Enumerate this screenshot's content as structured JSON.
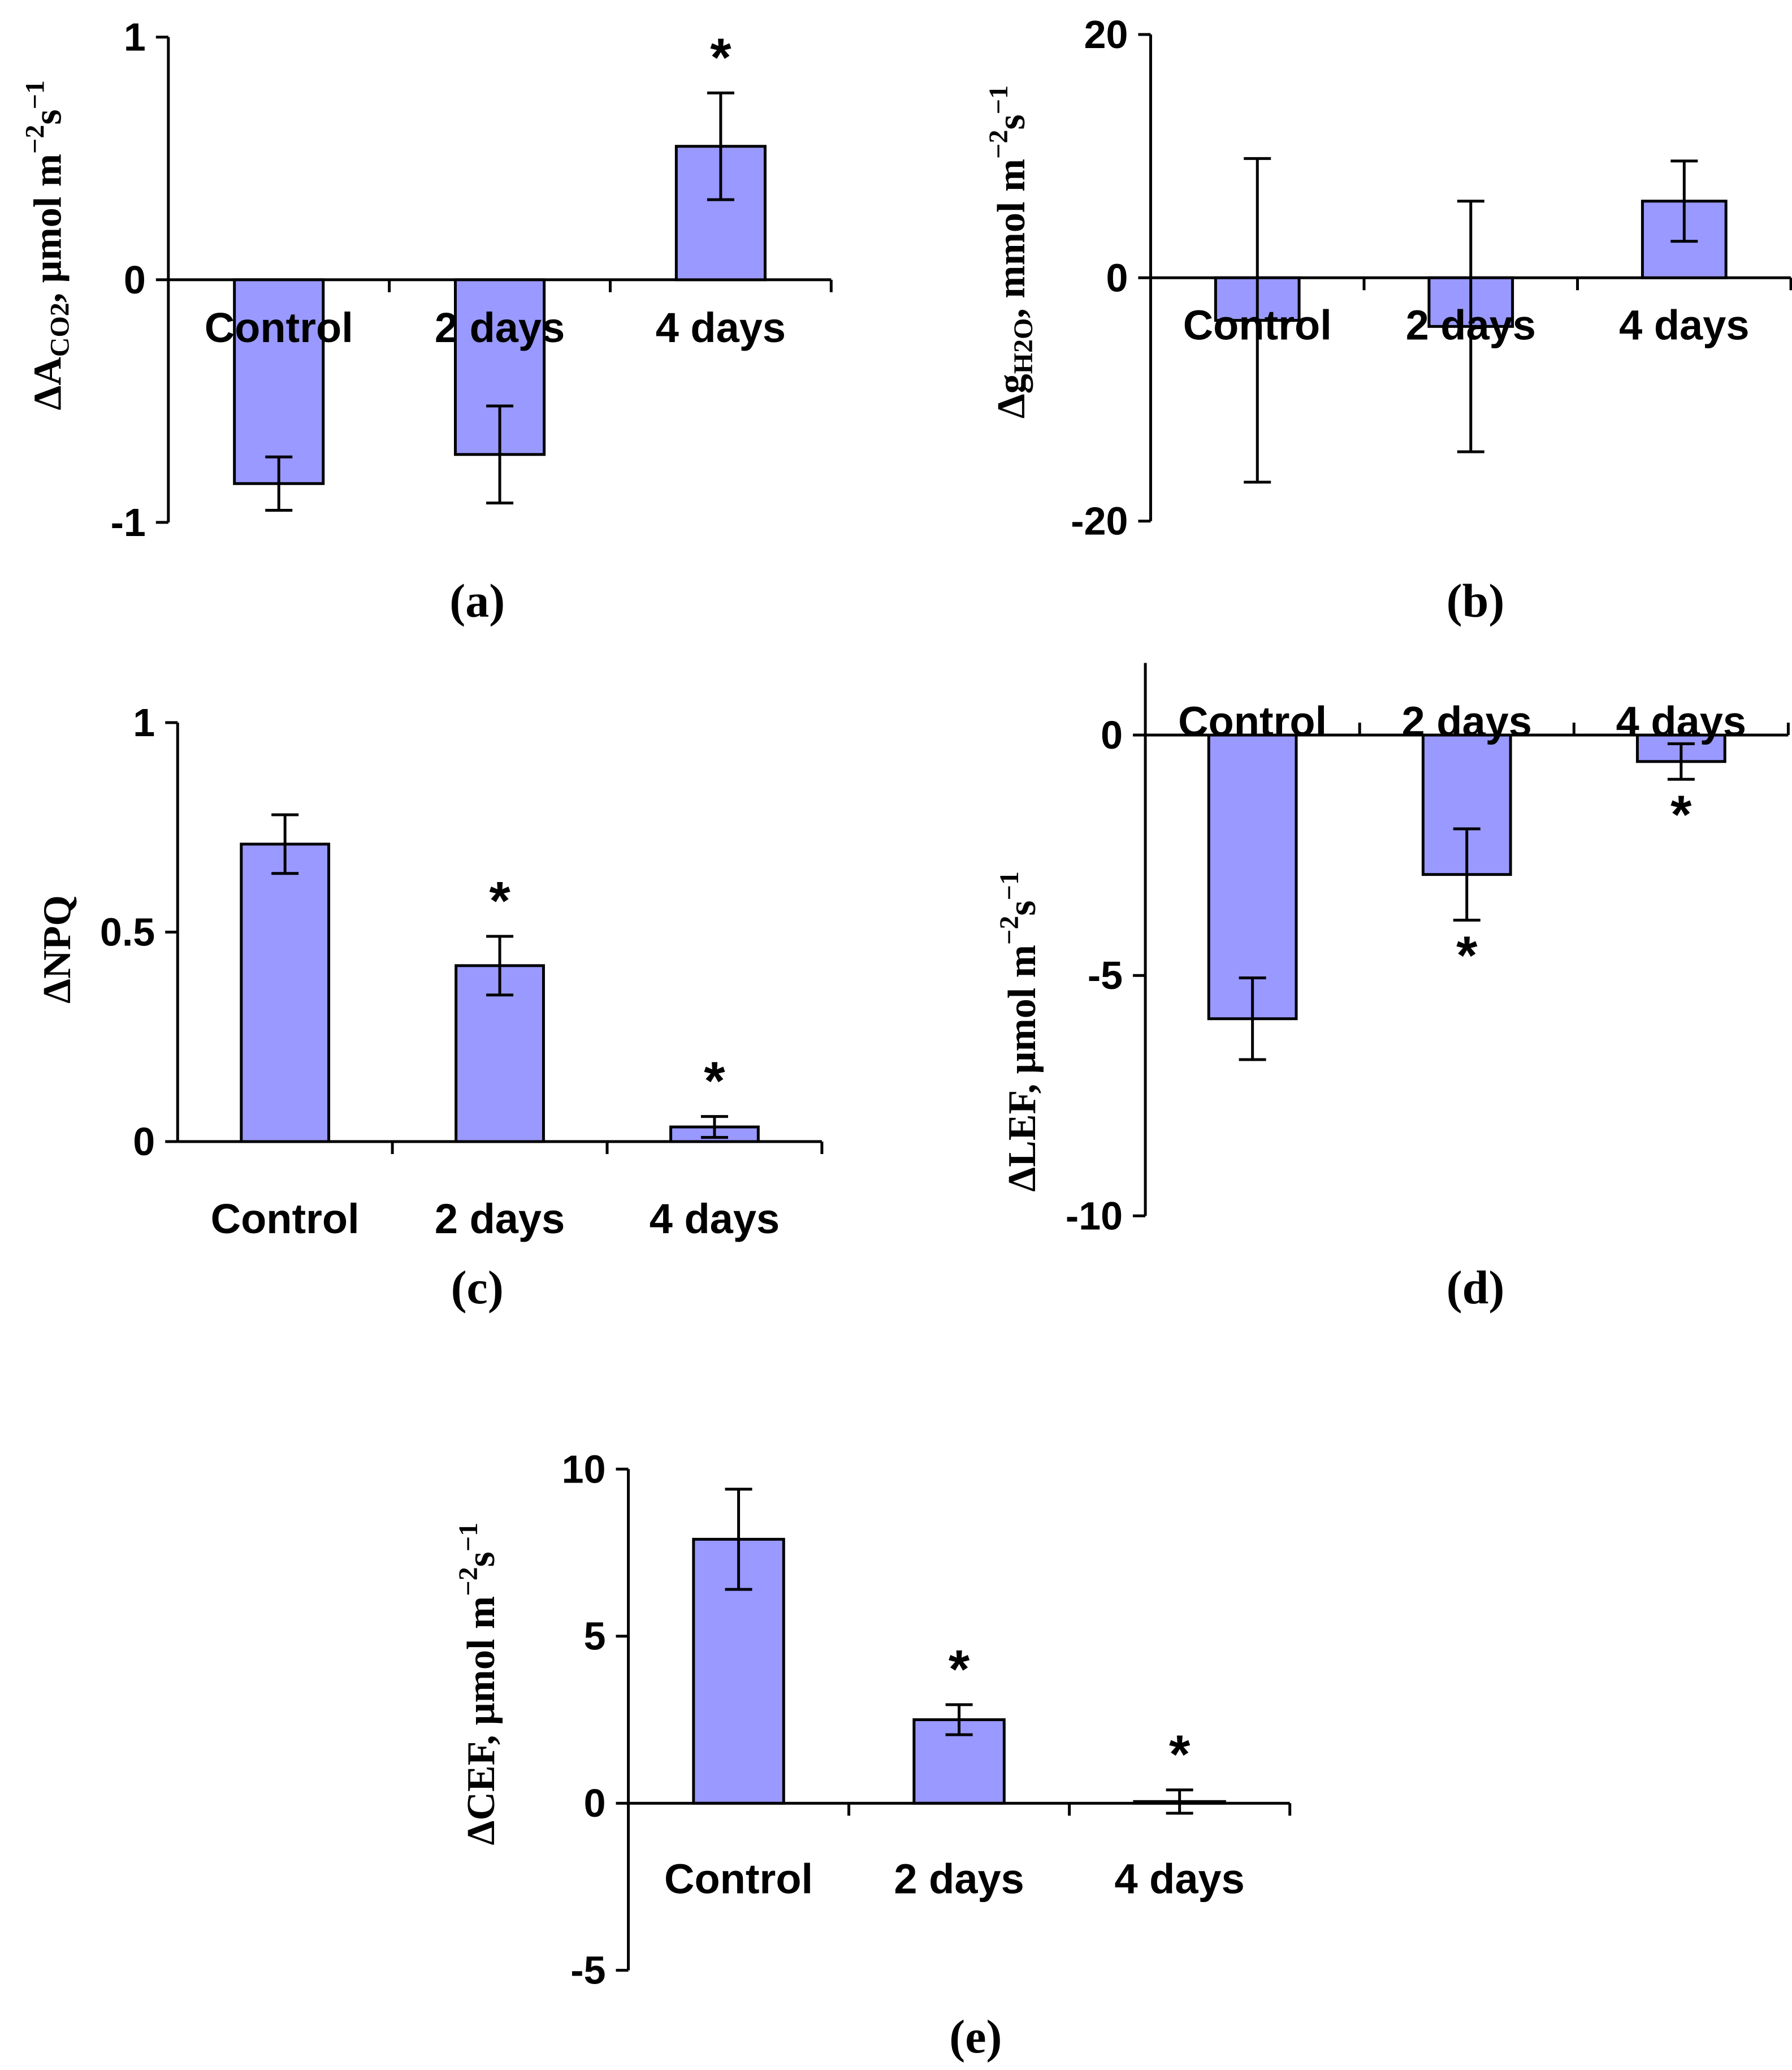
{
  "colors": {
    "bar_fill": "#9999ff",
    "bar_stroke": "#000000",
    "axis": "#000000"
  },
  "chart_data": [
    {
      "id": "a",
      "type": "bar",
      "panel_label": "(a)",
      "ylabel_main": "ΔA",
      "ylabel_sub": "CO2",
      "ylabel_unit": ", μmol m",
      "ylabel_exp1": "−2",
      "ylabel_mid": "s",
      "ylabel_exp2": "−1",
      "categories": [
        "Control",
        "2 days",
        "4 days"
      ],
      "values": [
        -0.84,
        -0.72,
        0.55
      ],
      "error": [
        0.11,
        0.2,
        0.22
      ],
      "significant": [
        false,
        false,
        true
      ],
      "ylim": [
        -1,
        1
      ],
      "ticks": [
        -1,
        0,
        1
      ],
      "tick_labels": [
        "-1",
        "0",
        "1"
      ],
      "category_labels_position": "below-zero-line"
    },
    {
      "id": "b",
      "type": "bar",
      "panel_label": "(b)",
      "ylabel_main": "Δg",
      "ylabel_sub": "H2O",
      "ylabel_unit": ", mmol m",
      "ylabel_exp1": "−2",
      "ylabel_mid": "s",
      "ylabel_exp2": "−1",
      "categories": [
        "Control",
        "2 days",
        "4 days"
      ],
      "values": [
        -3.5,
        -4,
        6.3
      ],
      "error": [
        13.3,
        10.3,
        3.3
      ],
      "significant": [
        false,
        false,
        false
      ],
      "ylim": [
        -20,
        20
      ],
      "ticks": [
        -20,
        0,
        20
      ],
      "tick_labels": [
        "-20",
        "0",
        "20"
      ],
      "category_labels_position": "below-zero-line"
    },
    {
      "id": "c",
      "type": "bar",
      "panel_label": "(c)",
      "ylabel_main": "ΔNPQ",
      "ylabel_sub": "",
      "ylabel_unit": "",
      "ylabel_exp1": "",
      "ylabel_mid": "",
      "ylabel_exp2": "",
      "categories": [
        "Control",
        "2 days",
        "4 days"
      ],
      "values": [
        0.71,
        0.42,
        0.035
      ],
      "error": [
        0.07,
        0.07,
        0.025
      ],
      "significant": [
        false,
        true,
        true
      ],
      "ylim": [
        0,
        1
      ],
      "ticks": [
        0,
        0.5,
        1
      ],
      "tick_labels": [
        "0",
        "0.5",
        "1"
      ],
      "category_labels_position": "below-axis"
    },
    {
      "id": "d",
      "type": "bar",
      "panel_label": "(d)",
      "ylabel_main": "ΔLEF",
      "ylabel_sub": "",
      "ylabel_unit": ", μmol m",
      "ylabel_exp1": "−2",
      "ylabel_mid": "s",
      "ylabel_exp2": "−1",
      "categories": [
        "Control",
        "2 days",
        "4 days"
      ],
      "values": [
        -5.9,
        -2.9,
        -0.55
      ],
      "error": [
        0.85,
        0.95,
        0.37
      ],
      "significant": [
        false,
        true,
        true
      ],
      "ylim": [
        -10,
        1.5
      ],
      "ticks": [
        -10,
        -5,
        0
      ],
      "tick_labels": [
        "-10",
        "-5",
        "0"
      ],
      "category_labels_position": "above-axis"
    },
    {
      "id": "e",
      "type": "bar",
      "panel_label": "(e)",
      "ylabel_main": "ΔCEF",
      "ylabel_sub": "",
      "ylabel_unit": ", μmol m",
      "ylabel_exp1": "−2",
      "ylabel_mid": "s",
      "ylabel_exp2": "−1",
      "categories": [
        "Control",
        "2 days",
        "4 days"
      ],
      "values": [
        7.9,
        2.5,
        0.05
      ],
      "error": [
        1.5,
        0.45,
        0.35
      ],
      "significant": [
        false,
        true,
        true
      ],
      "ylim": [
        -5,
        10
      ],
      "ticks": [
        -5,
        0,
        5,
        10
      ],
      "tick_labels": [
        "-5",
        "0",
        "5",
        "10"
      ],
      "category_labels_position": "below-zero-line"
    }
  ],
  "significance_marker": "*"
}
